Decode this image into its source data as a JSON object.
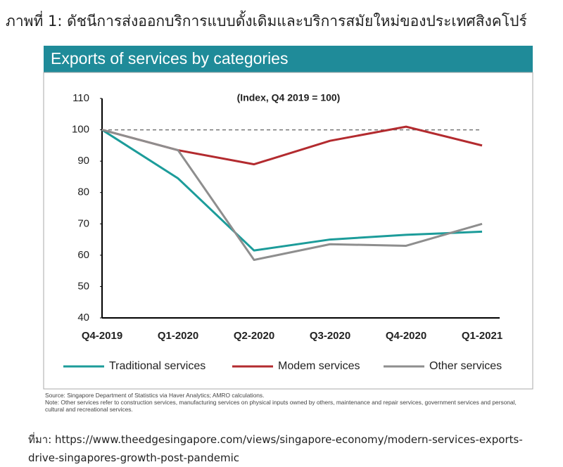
{
  "heading": "ภาพที่ 1: ดัชนีการส่งออกบริการแบบดั้งเดิมและบริการสมัยใหม่ของประเทศสิงคโปร์",
  "source_link": "ที่มา: https://www.theedgesingapore.com/views/singapore-economy/modern-services-exports-drive-singapores-growth-post-pandemic",
  "chart_data": {
    "type": "line",
    "title": "Exports of services by categories",
    "subtitle": "(Index, Q4 2019 = 100)",
    "categories": [
      "Q4-2019",
      "Q1-2020",
      "Q2-2020",
      "Q3-2020",
      "Q4-2020",
      "Q1-2021"
    ],
    "series": [
      {
        "name": "Traditional services",
        "color": "#1c9c9a",
        "values": [
          100,
          84.5,
          61.5,
          65,
          66.5,
          67.5
        ]
      },
      {
        "name": "Modem services",
        "color": "#b32b2f",
        "values": [
          100,
          93.5,
          89,
          96.5,
          101,
          95
        ]
      },
      {
        "name": "Other services",
        "color": "#8e8e8e",
        "values": [
          100,
          93.5,
          58.5,
          63.5,
          63,
          70
        ]
      }
    ],
    "reference_line": 100,
    "ylim": [
      40,
      110
    ],
    "yticks": [
      40,
      50,
      60,
      70,
      80,
      90,
      100,
      110
    ],
    "grid": false,
    "source": "Source: Singapore Department of Statistics via Haver Analytics; AMRO calculations.",
    "note": "Note: Other services refer to construction services, manufacturing services on physical inputs owned by others, maintenance and repair services, government services and personal, cultural and recreational services."
  }
}
